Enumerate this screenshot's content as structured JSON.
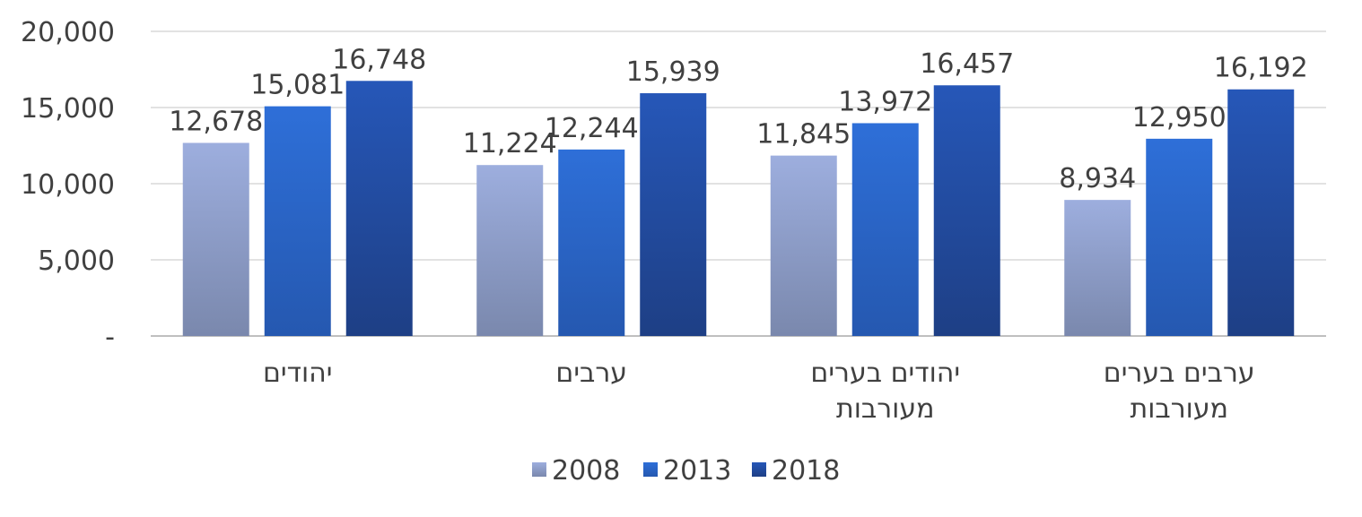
{
  "chart_data": {
    "type": "bar",
    "title": "",
    "xlabel": "",
    "ylabel": "",
    "ylim": [
      0,
      20000
    ],
    "yticks": [
      0,
      5000,
      10000,
      15000,
      20000
    ],
    "ytick_labels": [
      "-",
      "5,000",
      "10,000",
      "15,000",
      "20,000"
    ],
    "grid": true,
    "legend_position": "bottom",
    "categories": [
      [
        "יהודים"
      ],
      [
        "ערבים"
      ],
      [
        "יהודים בערים",
        "מעורבות"
      ],
      [
        "ערבים בערים",
        "מעורבות"
      ]
    ],
    "series": [
      {
        "name": "2008",
        "values": [
          12678,
          11224,
          11845,
          8934
        ],
        "labels": [
          "12,678",
          "11,224",
          "11,845",
          "8,934"
        ],
        "color_top": "#9daede",
        "color_bottom": "#7a88ad"
      },
      {
        "name": "2013",
        "values": [
          15081,
          12244,
          13972,
          12950
        ],
        "labels": [
          "15,081",
          "12,244",
          "13,972",
          "12,950"
        ],
        "color_top": "#2e6fd8",
        "color_bottom": "#2558b0"
      },
      {
        "name": "2018",
        "values": [
          16748,
          15939,
          16457,
          16192
        ],
        "labels": [
          "16,748",
          "15,939",
          "16,457",
          "16,192"
        ],
        "color_top": "#2657b8",
        "color_bottom": "#1e3f85"
      }
    ]
  }
}
